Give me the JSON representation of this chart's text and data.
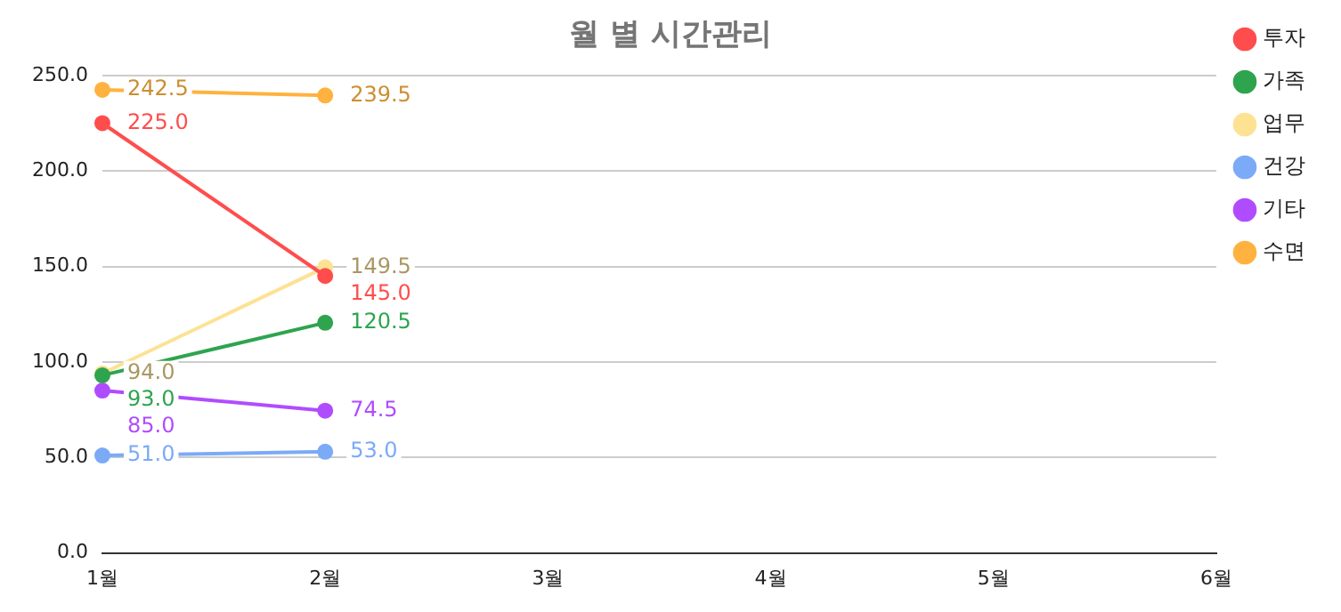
{
  "chart_data": {
    "type": "line",
    "title": "월 별 시간관리",
    "categories": [
      "1월",
      "2월",
      "3월",
      "4월",
      "5월",
      "6월"
    ],
    "series": [
      {
        "name": "투자",
        "color": "#ff4d4d",
        "values": [
          225.0,
          145.0,
          null,
          null,
          null,
          null
        ],
        "value_labels": [
          "225.0",
          "145.0",
          null,
          null,
          null,
          null
        ]
      },
      {
        "name": "가족",
        "color": "#2ea44f",
        "values": [
          93.0,
          120.5,
          null,
          null,
          null,
          null
        ],
        "value_labels": [
          "93.0",
          "120.5",
          null,
          null,
          null,
          null
        ]
      },
      {
        "name": "업무",
        "color": "#fde293",
        "values": [
          94.0,
          149.5,
          null,
          null,
          null,
          null
        ],
        "value_labels": [
          "94.0",
          "149.5",
          null,
          null,
          null,
          null
        ]
      },
      {
        "name": "건강",
        "color": "#7baaf7",
        "values": [
          51.0,
          53.0,
          null,
          null,
          null,
          null
        ],
        "value_labels": [
          "51.0",
          "53.0",
          null,
          null,
          null,
          null
        ]
      },
      {
        "name": "기타",
        "color": "#b04cff",
        "values": [
          85.0,
          74.5,
          null,
          null,
          null,
          null
        ],
        "value_labels": [
          "85.0",
          "74.5",
          null,
          null,
          null,
          null
        ]
      },
      {
        "name": "수면",
        "color": "#ffb23f",
        "values": [
          242.5,
          239.5,
          null,
          null,
          null,
          null
        ],
        "value_labels": [
          "242.5",
          "239.5",
          null,
          null,
          null,
          null
        ]
      }
    ],
    "ylim": [
      0,
      250
    ],
    "yticks": [
      {
        "value": 0,
        "label": "0.0"
      },
      {
        "value": 50,
        "label": "50.0"
      },
      {
        "value": 100,
        "label": "100.0"
      },
      {
        "value": 150,
        "label": "150.0"
      },
      {
        "value": 200,
        "label": "200.0"
      },
      {
        "value": 250,
        "label": "250.0"
      }
    ],
    "grid": "y",
    "legend": "right",
    "marker": "circle",
    "line_style": "solid"
  }
}
